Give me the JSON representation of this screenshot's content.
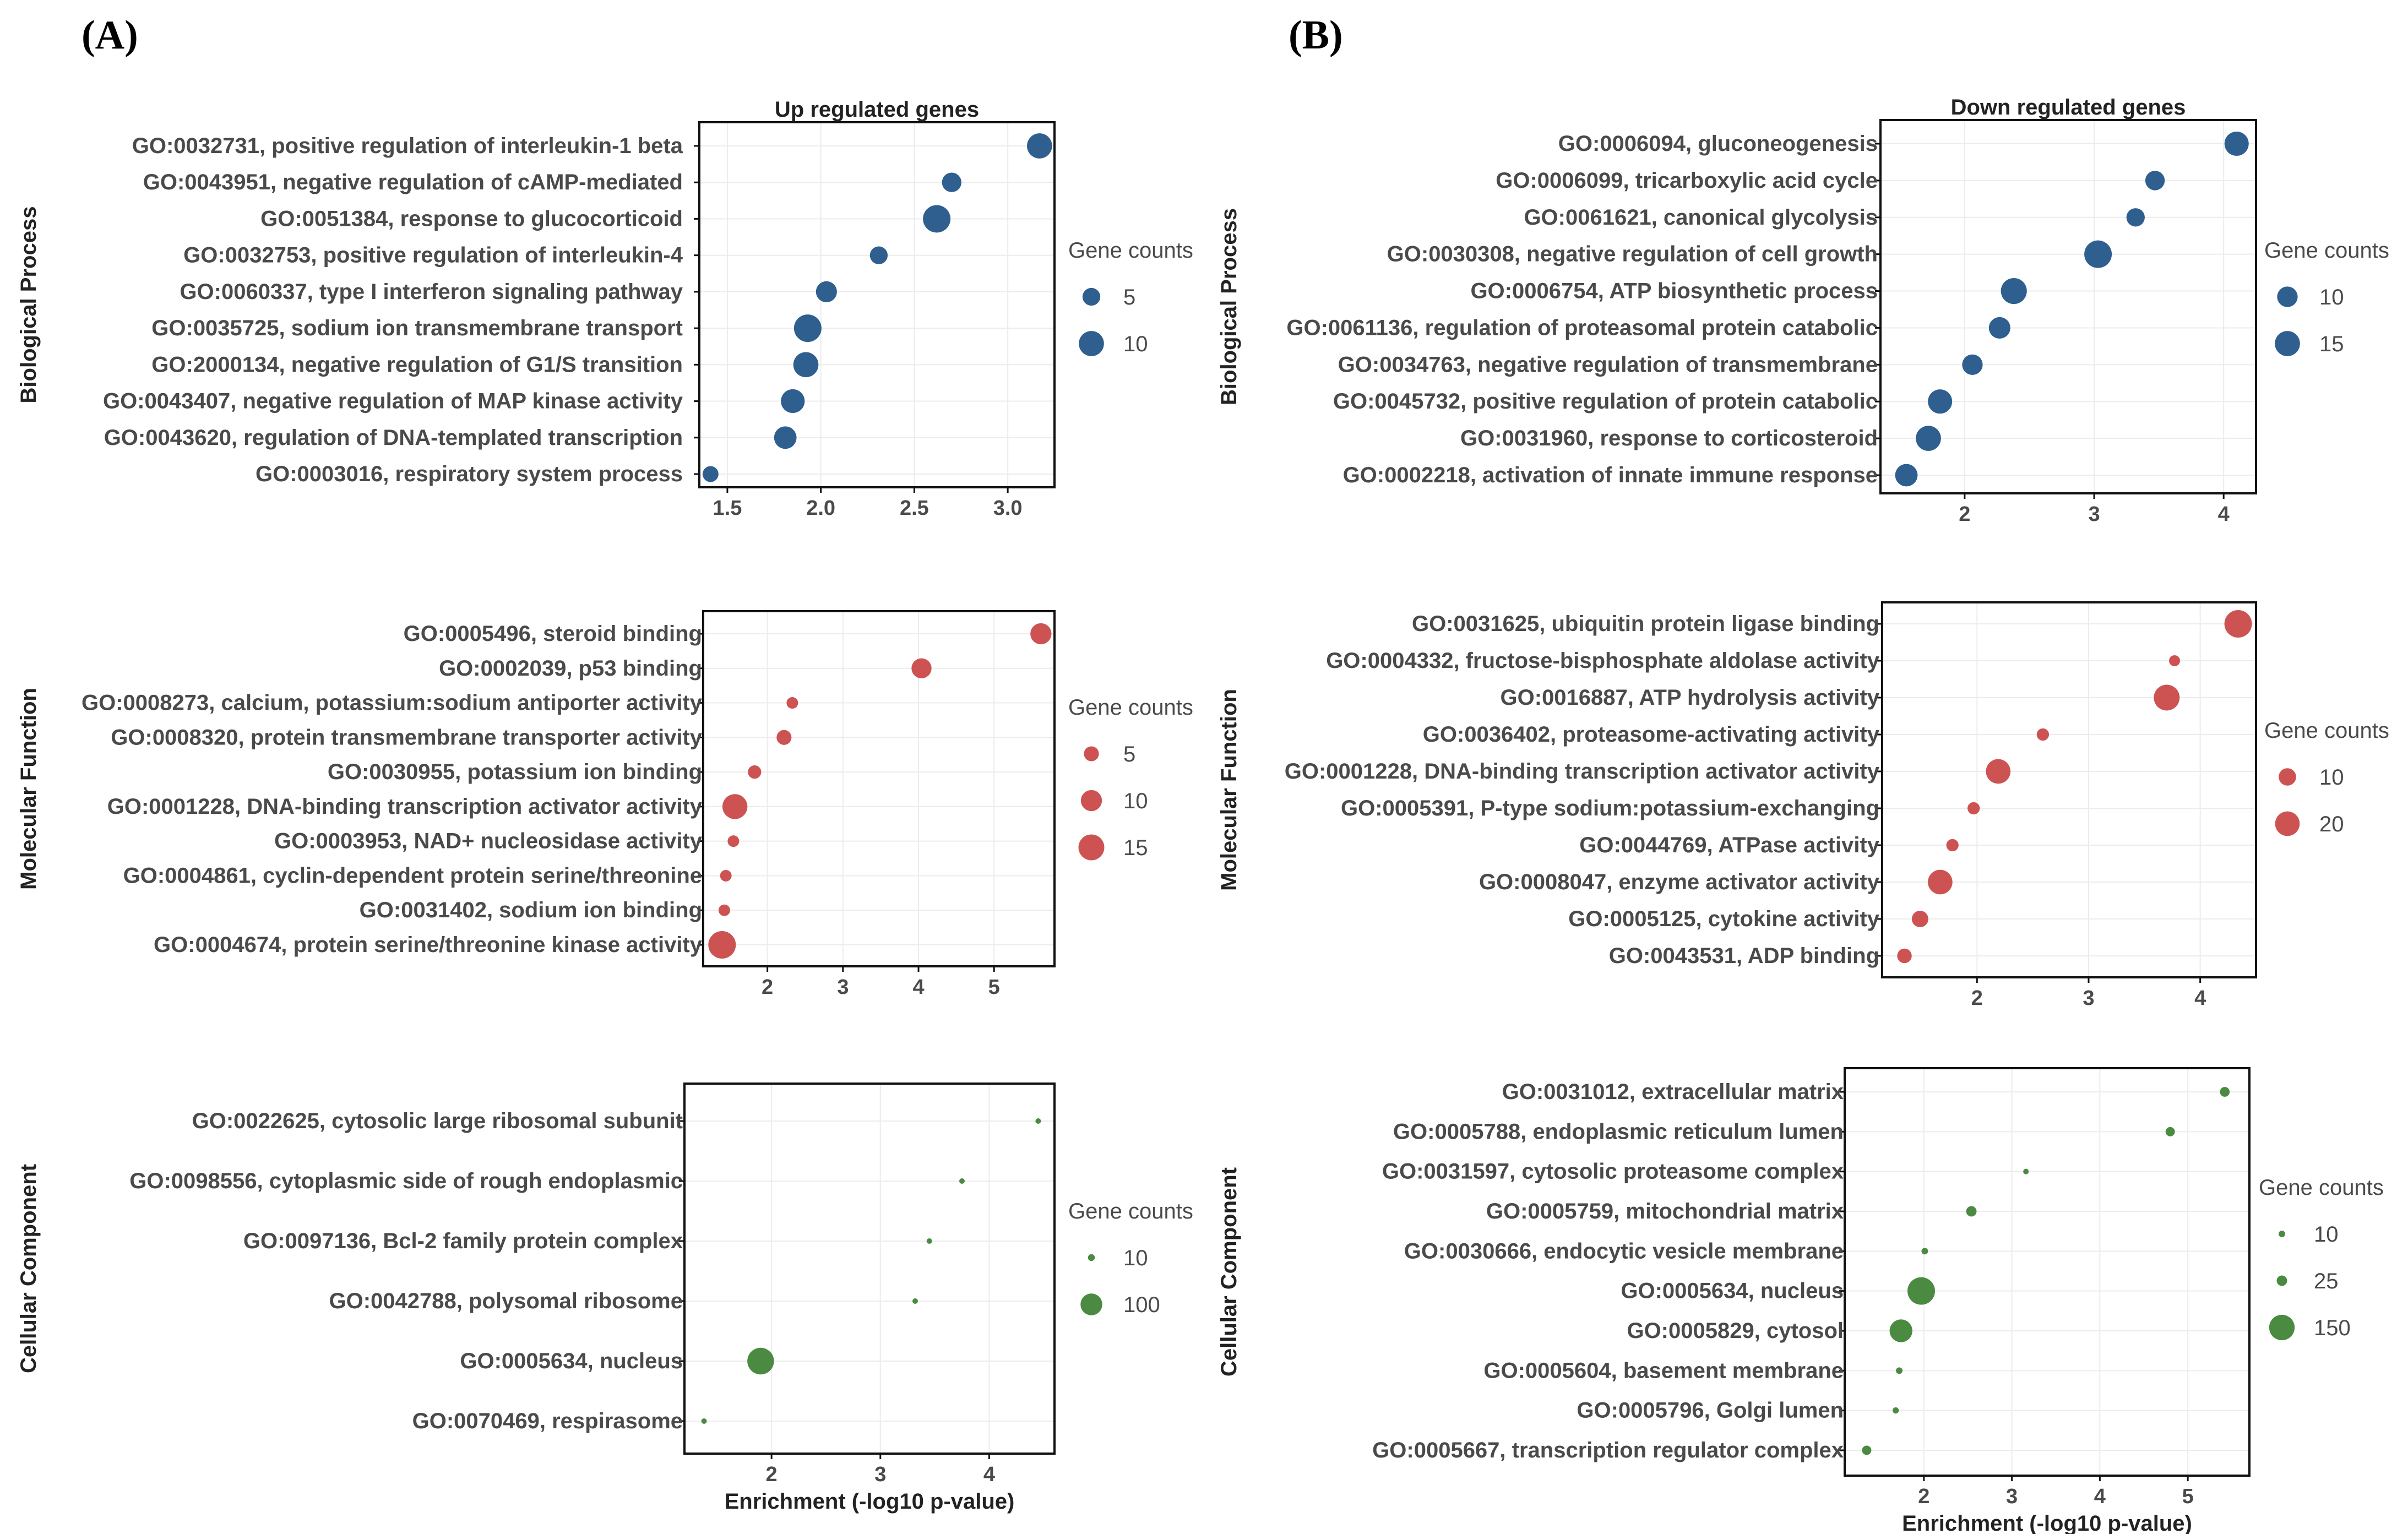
{
  "panel_labels": [
    "(A)",
    "(B)"
  ],
  "colors": {
    "bp": "#2f5f8f",
    "mf": "#cd5353",
    "cc": "#4a8a41"
  },
  "chart_data": [
    {
      "id": "a-bp",
      "type": "scatter",
      "title": "Up regulated genes",
      "ylabel": "Biological Process",
      "xlabel": "",
      "color": "bp",
      "xlim": [
        1.35,
        3.25
      ],
      "xticks": [
        1.5,
        2.0,
        2.5,
        3.0
      ],
      "xtick_labels": [
        "1.5",
        "2.0",
        "2.5",
        "3.0"
      ],
      "size_domain": [
        1,
        12
      ],
      "legend": {
        "title": "Gene counts",
        "items": [
          {
            "label": "5",
            "value": 5
          },
          {
            "label": "10",
            "value": 10
          }
        ]
      },
      "points": [
        {
          "term": "GO:0032731, positive regulation of interleukin-1 beta",
          "x": 3.17,
          "count": 10
        },
        {
          "term": "GO:0043951, negative regulation of cAMP-mediated",
          "x": 2.7,
          "count": 6
        },
        {
          "term": "GO:0051384, response to glucocorticoid",
          "x": 2.62,
          "count": 12
        },
        {
          "term": "GO:0032753, positive regulation of interleukin-4",
          "x": 2.31,
          "count": 5
        },
        {
          "term": "GO:0060337, type I interferon signaling pathway",
          "x": 2.03,
          "count": 7
        },
        {
          "term": "GO:0035725, sodium ion transmembrane transport",
          "x": 1.93,
          "count": 12
        },
        {
          "term": "GO:2000134, negative regulation of G1/S transition",
          "x": 1.92,
          "count": 10
        },
        {
          "term": "GO:0043407, negative regulation of MAP kinase activity",
          "x": 1.85,
          "count": 9
        },
        {
          "term": "GO:0043620, regulation of DNA-templated transcription",
          "x": 1.81,
          "count": 8
        },
        {
          "term": "GO:0003016, respiratory system process",
          "x": 1.41,
          "count": 4
        }
      ]
    },
    {
      "id": "a-mf",
      "type": "scatter",
      "title": "",
      "ylabel": "Molecular Function",
      "xlabel": "",
      "color": "mf",
      "xlim": [
        1.15,
        5.8
      ],
      "xticks": [
        2,
        3,
        4,
        5
      ],
      "xtick_labels": [
        "2",
        "3",
        "4",
        "5"
      ],
      "size_domain": [
        1,
        17
      ],
      "legend": {
        "title": "Gene counts",
        "items": [
          {
            "label": "5",
            "value": 5
          },
          {
            "label": "10",
            "value": 10
          },
          {
            "label": "15",
            "value": 15
          }
        ]
      },
      "points": [
        {
          "term": "GO:0005496, steroid binding",
          "x": 5.62,
          "count": 10
        },
        {
          "term": "GO:0002039, p53 binding",
          "x": 4.04,
          "count": 9
        },
        {
          "term": "GO:0008273, calcium, potassium:sodium antiporter activity",
          "x": 2.33,
          "count": 3
        },
        {
          "term": "GO:0008320, protein transmembrane transporter activity",
          "x": 2.22,
          "count": 5
        },
        {
          "term": "GO:0030955, potassium ion binding",
          "x": 1.83,
          "count": 4
        },
        {
          "term": "GO:0001228, DNA-binding transcription activator activity",
          "x": 1.57,
          "count": 14
        },
        {
          "term": "GO:0003953, NAD+ nucleosidase activity",
          "x": 1.55,
          "count": 3
        },
        {
          "term": "GO:0004861, cyclin-dependent protein serine/threonine",
          "x": 1.45,
          "count": 3
        },
        {
          "term": "GO:0031402, sodium ion binding",
          "x": 1.43,
          "count": 3
        },
        {
          "term": "GO:0004674, protein serine/threonine kinase activity",
          "x": 1.4,
          "count": 17
        }
      ]
    },
    {
      "id": "a-cc",
      "type": "scatter",
      "title": "",
      "ylabel": "Cellular Component",
      "xlabel": "Enrichment (-log10 p-value)",
      "color": "cc",
      "xlim": [
        1.2,
        4.6
      ],
      "xticks": [
        2,
        3,
        4
      ],
      "xtick_labels": [
        "2",
        "3",
        "4"
      ],
      "size_domain": [
        1,
        160
      ],
      "legend": {
        "title": "Gene counts",
        "items": [
          {
            "label": "10",
            "value": 10
          },
          {
            "label": "100",
            "value": 100
          }
        ]
      },
      "points": [
        {
          "term": "GO:0022625, cytosolic large ribosomal subunit",
          "x": 4.45,
          "count": 5
        },
        {
          "term": "GO:0098556, cytoplasmic side of rough endoplasmic",
          "x": 3.75,
          "count": 4
        },
        {
          "term": "GO:0097136, Bcl-2 family protein complex",
          "x": 3.45,
          "count": 3
        },
        {
          "term": "GO:0042788, polysomal ribosome",
          "x": 3.32,
          "count": 4
        },
        {
          "term": "GO:0005634, nucleus",
          "x": 1.9,
          "count": 150
        },
        {
          "term": "GO:0070469, respirasome",
          "x": 1.38,
          "count": 3
        }
      ]
    },
    {
      "id": "b-bp",
      "type": "scatter",
      "title": "Down regulated genes",
      "ylabel": "Biological Process",
      "xlabel": "",
      "color": "bp",
      "xlim": [
        1.35,
        4.25
      ],
      "xticks": [
        2,
        3,
        4
      ],
      "xtick_labels": [
        "2",
        "3",
        "4"
      ],
      "size_domain": [
        1,
        18
      ],
      "legend": {
        "title": "Gene counts",
        "items": [
          {
            "label": "10",
            "value": 10
          },
          {
            "label": "15",
            "value": 15
          }
        ]
      },
      "points": [
        {
          "term": "GO:0006094, gluconeogenesis",
          "x": 4.1,
          "count": 14
        },
        {
          "term": "GO:0006099, tricarboxylic acid cycle",
          "x": 3.47,
          "count": 9
        },
        {
          "term": "GO:0061621, canonical glycolysis",
          "x": 3.32,
          "count": 8
        },
        {
          "term": "GO:0030308, negative regulation of cell growth",
          "x": 3.03,
          "count": 18
        },
        {
          "term": "GO:0006754, ATP biosynthetic process",
          "x": 2.38,
          "count": 16
        },
        {
          "term": "GO:0061136, regulation of proteasomal protein catabolic",
          "x": 2.27,
          "count": 11
        },
        {
          "term": "GO:0034763, negative regulation of transmembrane",
          "x": 2.06,
          "count": 10
        },
        {
          "term": "GO:0045732, positive regulation of protein catabolic",
          "x": 1.81,
          "count": 14
        },
        {
          "term": "GO:0031960, response to corticosteroid",
          "x": 1.72,
          "count": 15
        },
        {
          "term": "GO:0002218, activation of innate immune response",
          "x": 1.55,
          "count": 12
        }
      ]
    },
    {
      "id": "b-mf",
      "type": "scatter",
      "title": "",
      "ylabel": "Molecular Function",
      "xlabel": "",
      "color": "mf",
      "xlim": [
        1.15,
        4.5
      ],
      "xticks": [
        2,
        3,
        4
      ],
      "xtick_labels": [
        "2",
        "3",
        "4"
      ],
      "size_domain": [
        1,
        25
      ],
      "legend": {
        "title": "Gene counts",
        "items": [
          {
            "label": "10",
            "value": 10
          },
          {
            "label": "20",
            "value": 20
          }
        ]
      },
      "points": [
        {
          "term": "GO:0031625, ubiquitin protein ligase binding",
          "x": 4.34,
          "count": 25
        },
        {
          "term": "GO:0004332, fructose-bisphosphate aldolase activity",
          "x": 3.77,
          "count": 4
        },
        {
          "term": "GO:0016887, ATP hydrolysis activity",
          "x": 3.7,
          "count": 22
        },
        {
          "term": "GO:0036402, proteasome-activating activity",
          "x": 2.59,
          "count": 5
        },
        {
          "term": "GO:0001228, DNA-binding transcription activator activity",
          "x": 2.19,
          "count": 20
        },
        {
          "term": "GO:0005391, P-type sodium:potassium-exchanging",
          "x": 1.97,
          "count": 5
        },
        {
          "term": "GO:0044769, ATPase activity",
          "x": 1.78,
          "count": 5
        },
        {
          "term": "GO:0008047, enzyme activator activity",
          "x": 1.67,
          "count": 20
        },
        {
          "term": "GO:0005125, cytokine activity",
          "x": 1.49,
          "count": 9
        },
        {
          "term": "GO:0043531, ADP binding",
          "x": 1.35,
          "count": 7
        }
      ]
    },
    {
      "id": "b-cc",
      "type": "scatter",
      "title": "",
      "ylabel": "Cellular Component",
      "xlabel": "Enrichment (-log10 p-value)",
      "color": "cc",
      "xlim": [
        1.1,
        5.7
      ],
      "xticks": [
        2,
        3,
        4,
        5
      ],
      "xtick_labels": [
        "2",
        "3",
        "4",
        "5"
      ],
      "size_domain": [
        1,
        175
      ],
      "legend": {
        "title": "Gene counts",
        "items": [
          {
            "label": "10",
            "value": 10
          },
          {
            "label": "25",
            "value": 25
          },
          {
            "label": "150",
            "value": 150
          }
        ]
      },
      "points": [
        {
          "term": "GO:0031012, extracellular matrix",
          "x": 5.42,
          "count": 22
        },
        {
          "term": "GO:0005788, endoplasmic reticulum lumen",
          "x": 4.8,
          "count": 20
        },
        {
          "term": "GO:0031597, cytosolic proteasome complex",
          "x": 3.16,
          "count": 6
        },
        {
          "term": "GO:0005759, mitochondrial matrix",
          "x": 2.54,
          "count": 25
        },
        {
          "term": "GO:0030666, endocytic vesicle membrane",
          "x": 2.01,
          "count": 10
        },
        {
          "term": "GO:0005634, nucleus",
          "x": 1.97,
          "count": 175
        },
        {
          "term": "GO:0005829, cytosol",
          "x": 1.74,
          "count": 120
        },
        {
          "term": "GO:0005604, basement membrane",
          "x": 1.72,
          "count": 10
        },
        {
          "term": "GO:0005796, Golgi lumen",
          "x": 1.68,
          "count": 9
        },
        {
          "term": "GO:0005667, transcription regulator complex",
          "x": 1.35,
          "count": 20
        }
      ]
    }
  ]
}
